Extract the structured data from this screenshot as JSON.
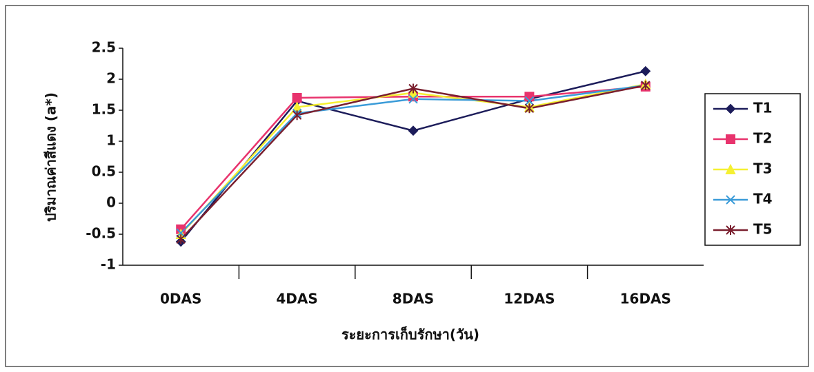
{
  "chart_data": {
    "type": "line",
    "y_label": "ปริมาณค่าสีแดง (a*)",
    "x_label": "ระยะการเก็บรักษา(วัน)",
    "categories": [
      "0DAS",
      "4DAS",
      "8DAS",
      "12DAS",
      "16DAS"
    ],
    "ylim": [
      -1,
      2.5
    ],
    "yticks": [
      -1,
      -0.5,
      0,
      0.5,
      1,
      1.5,
      2,
      2.5
    ],
    "grid": false,
    "legend": "right",
    "series": [
      {
        "name": "T1",
        "color": "#1c1c5a",
        "marker": "diamond",
        "values": [
          -0.62,
          1.65,
          1.17,
          1.68,
          2.13
        ]
      },
      {
        "name": "T2",
        "color": "#e8336d",
        "marker": "square",
        "values": [
          -0.42,
          1.7,
          1.72,
          1.72,
          1.88
        ]
      },
      {
        "name": "T3",
        "color": "#f5f032",
        "marker": "triangle",
        "values": [
          -0.5,
          1.55,
          1.78,
          1.55,
          1.92
        ]
      },
      {
        "name": "T4",
        "color": "#3a9bd8",
        "marker": "x",
        "values": [
          -0.48,
          1.45,
          1.68,
          1.65,
          1.9
        ]
      },
      {
        "name": "T5",
        "color": "#7a1f2e",
        "marker": "star",
        "values": [
          -0.58,
          1.42,
          1.85,
          1.53,
          1.9
        ]
      }
    ]
  }
}
